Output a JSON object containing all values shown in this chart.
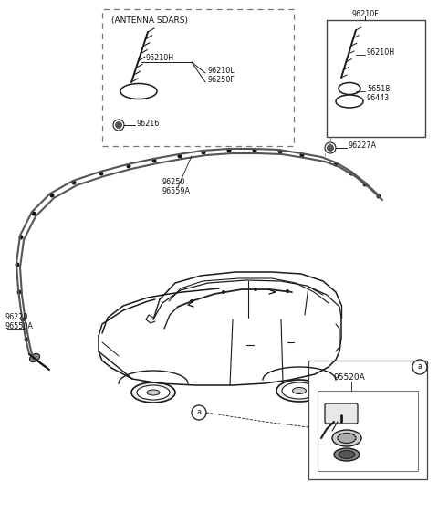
{
  "bg_color": "#ffffff",
  "lc": "#1a1a1a",
  "gc": "#555555",
  "labels": {
    "antenna_sdars": "(ANTENNA SDARS)",
    "96210H_l": "96210H",
    "96210L": "96210L",
    "96250F_l": "96250F",
    "96216": "96216",
    "96210F": "96210F",
    "96210H_r": "96210H",
    "56518": "56518",
    "96443": "96443",
    "96227A": "96227A",
    "96250": "96250",
    "96559A": "96559A",
    "96220": "96220",
    "96550A": "96550A",
    "95520A": "95520A",
    "a": "a"
  },
  "fs": 6.5,
  "fss": 5.8
}
